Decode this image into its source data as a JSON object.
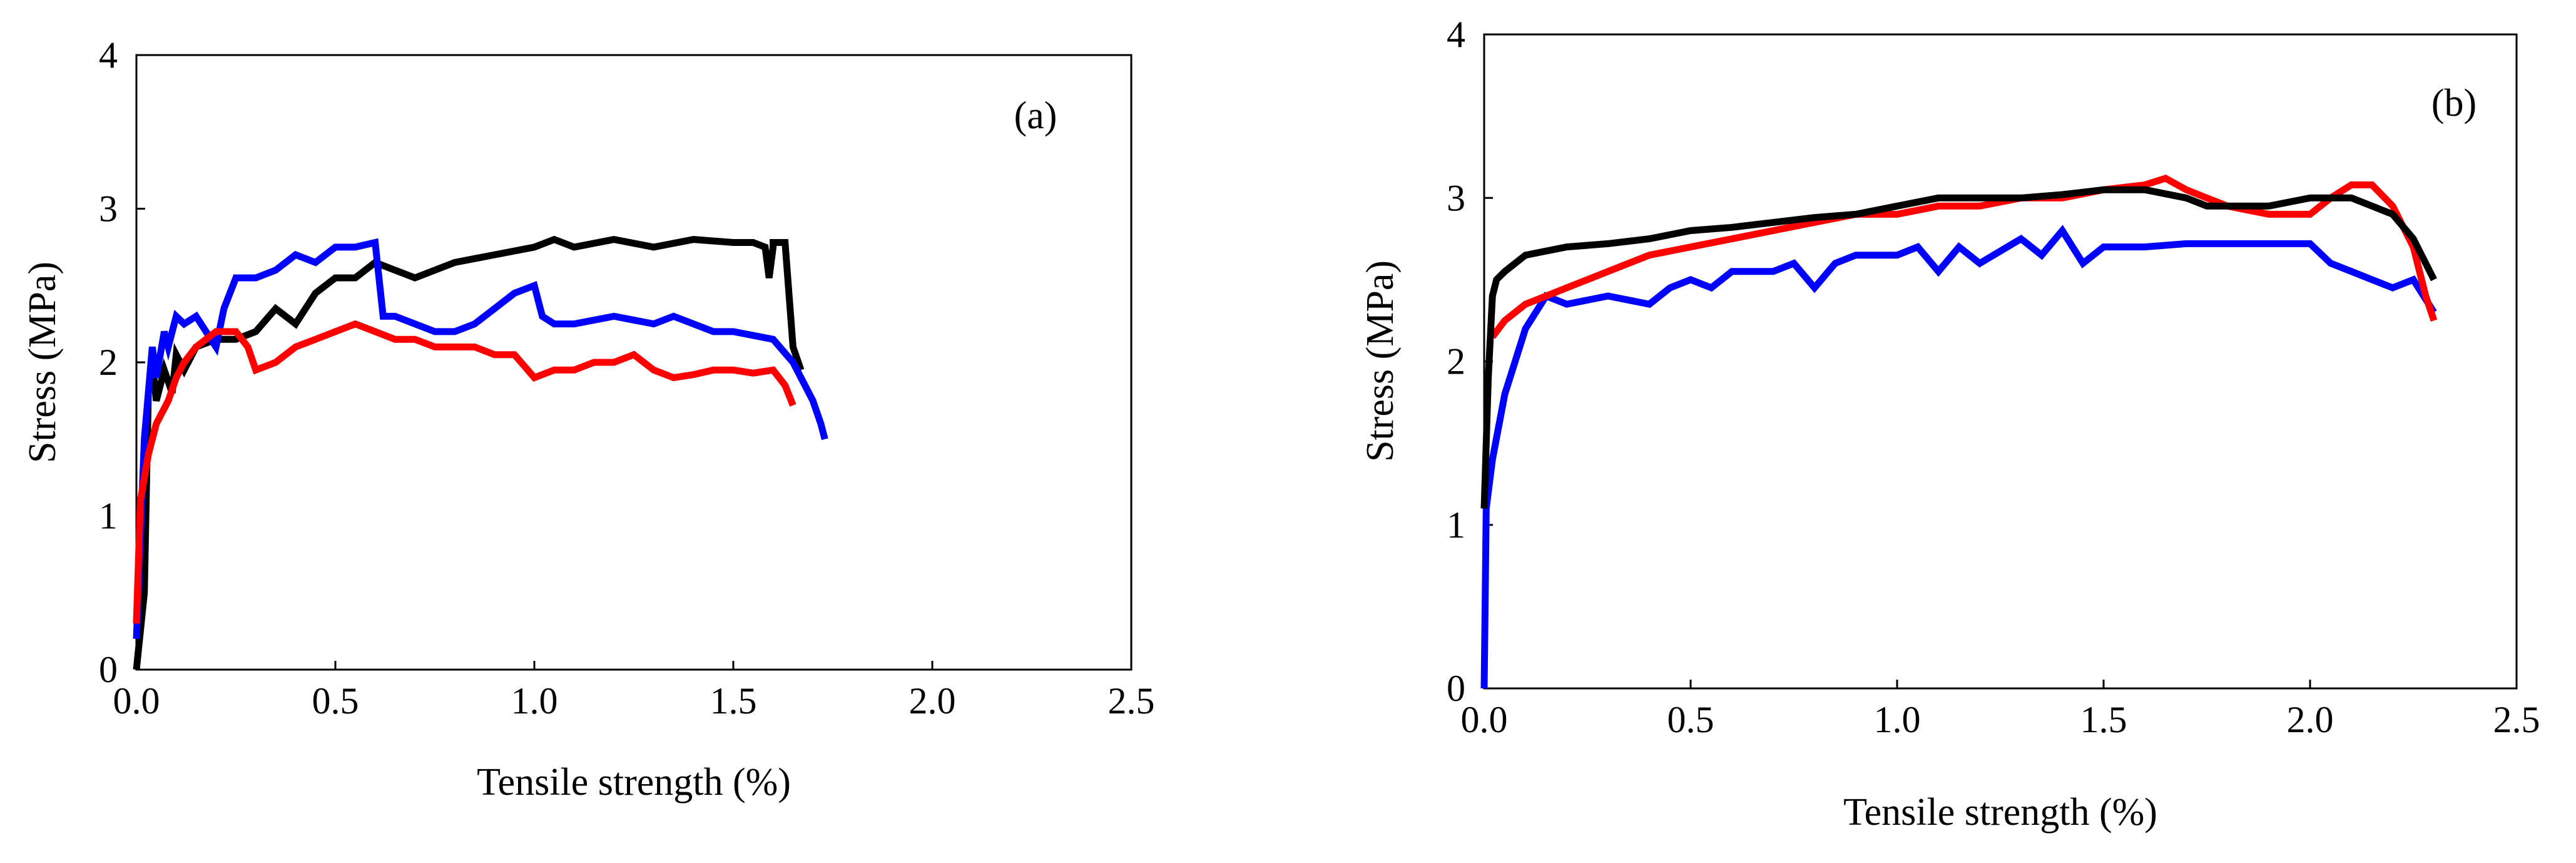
{
  "chart_data": [
    {
      "panel_label": "(a)",
      "type": "line",
      "xlabel": "Tensile strength (%)",
      "ylabel": "Stress (MPa)",
      "xlim": [
        0,
        2.5
      ],
      "ylim": [
        0,
        4
      ],
      "xticks": [
        "0.0",
        "0.5",
        "1.0",
        "1.5",
        "2.0",
        "2.5"
      ],
      "yticks": [
        "0",
        "1",
        "2",
        "3",
        "4"
      ],
      "series": [
        {
          "name": "black",
          "color": "#000000",
          "x": [
            0,
            0.02,
            0.03,
            0.04,
            0.05,
            0.07,
            0.09,
            0.1,
            0.12,
            0.15,
            0.2,
            0.25,
            0.3,
            0.35,
            0.4,
            0.45,
            0.5,
            0.55,
            0.6,
            0.65,
            0.7,
            0.8,
            0.9,
            1.0,
            1.05,
            1.1,
            1.2,
            1.3,
            1.4,
            1.5,
            1.55,
            1.58,
            1.59,
            1.6,
            1.6,
            1.63,
            1.65,
            1.67
          ],
          "y": [
            0,
            0.5,
            1.8,
            2.0,
            1.75,
            1.95,
            1.8,
            2.05,
            1.95,
            2.1,
            2.15,
            2.15,
            2.2,
            2.35,
            2.25,
            2.45,
            2.55,
            2.55,
            2.65,
            2.6,
            2.55,
            2.65,
            2.7,
            2.75,
            2.8,
            2.75,
            2.8,
            2.75,
            2.8,
            2.78,
            2.78,
            2.75,
            2.55,
            2.75,
            2.78,
            2.78,
            2.1,
            1.95
          ]
        },
        {
          "name": "blue",
          "color": "#0000ff",
          "x": [
            0,
            0.02,
            0.04,
            0.05,
            0.07,
            0.08,
            0.1,
            0.12,
            0.15,
            0.2,
            0.22,
            0.25,
            0.3,
            0.35,
            0.4,
            0.45,
            0.5,
            0.55,
            0.6,
            0.62,
            0.65,
            0.7,
            0.75,
            0.8,
            0.85,
            0.9,
            0.95,
            1.0,
            1.02,
            1.05,
            1.1,
            1.2,
            1.3,
            1.35,
            1.4,
            1.45,
            1.5,
            1.6,
            1.65,
            1.68,
            1.7,
            1.72,
            1.73
          ],
          "y": [
            0.2,
            1.5,
            2.1,
            1.9,
            2.2,
            2.1,
            2.3,
            2.25,
            2.3,
            2.1,
            2.35,
            2.55,
            2.55,
            2.6,
            2.7,
            2.65,
            2.75,
            2.75,
            2.78,
            2.3,
            2.3,
            2.25,
            2.2,
            2.2,
            2.25,
            2.35,
            2.45,
            2.5,
            2.3,
            2.25,
            2.25,
            2.3,
            2.25,
            2.3,
            2.25,
            2.2,
            2.2,
            2.15,
            2.0,
            1.85,
            1.75,
            1.6,
            1.5
          ]
        },
        {
          "name": "red",
          "color": "#ff0000",
          "x": [
            0,
            0.01,
            0.03,
            0.05,
            0.08,
            0.1,
            0.12,
            0.15,
            0.2,
            0.25,
            0.28,
            0.3,
            0.35,
            0.4,
            0.45,
            0.5,
            0.55,
            0.6,
            0.65,
            0.7,
            0.75,
            0.8,
            0.85,
            0.9,
            0.95,
            1.0,
            1.05,
            1.1,
            1.15,
            1.2,
            1.25,
            1.3,
            1.35,
            1.4,
            1.45,
            1.5,
            1.55,
            1.6,
            1.63,
            1.65
          ],
          "y": [
            0.3,
            1.1,
            1.4,
            1.6,
            1.75,
            1.9,
            2.0,
            2.1,
            2.2,
            2.2,
            2.1,
            1.95,
            2.0,
            2.1,
            2.15,
            2.2,
            2.25,
            2.2,
            2.15,
            2.15,
            2.1,
            2.1,
            2.1,
            2.05,
            2.05,
            1.9,
            1.95,
            1.95,
            2.0,
            2.0,
            2.05,
            1.95,
            1.9,
            1.92,
            1.95,
            1.95,
            1.93,
            1.95,
            1.85,
            1.72
          ]
        }
      ]
    },
    {
      "panel_label": "(b)",
      "type": "line",
      "xlabel": "Tensile strength (%)",
      "ylabel": "Stress (MPa)",
      "xlim": [
        0,
        2.5
      ],
      "ylim": [
        0,
        4
      ],
      "xticks": [
        "0.0",
        "0.5",
        "1.0",
        "1.5",
        "2.0",
        "2.5"
      ],
      "yticks": [
        "0",
        "1",
        "2",
        "3",
        "4"
      ],
      "series": [
        {
          "name": "blue",
          "color": "#0000ff",
          "x": [
            0,
            0.005,
            0.02,
            0.05,
            0.1,
            0.15,
            0.2,
            0.3,
            0.4,
            0.45,
            0.5,
            0.55,
            0.6,
            0.7,
            0.75,
            0.8,
            0.85,
            0.9,
            1.0,
            1.05,
            1.1,
            1.15,
            1.2,
            1.3,
            1.35,
            1.4,
            1.45,
            1.5,
            1.6,
            1.7,
            1.8,
            1.9,
            2.0,
            2.05,
            2.1,
            2.15,
            2.2,
            2.25,
            2.3
          ],
          "y": [
            0,
            1.1,
            1.4,
            1.8,
            2.2,
            2.4,
            2.35,
            2.4,
            2.35,
            2.45,
            2.5,
            2.45,
            2.55,
            2.55,
            2.6,
            2.45,
            2.6,
            2.65,
            2.65,
            2.7,
            2.55,
            2.7,
            2.6,
            2.75,
            2.65,
            2.8,
            2.6,
            2.7,
            2.7,
            2.72,
            2.72,
            2.72,
            2.72,
            2.6,
            2.55,
            2.5,
            2.45,
            2.5,
            2.3
          ]
        },
        {
          "name": "red",
          "color": "#ff0000",
          "x": [
            0.02,
            0.05,
            0.1,
            0.15,
            0.2,
            0.3,
            0.4,
            0.5,
            0.6,
            0.7,
            0.8,
            0.9,
            1.0,
            1.1,
            1.2,
            1.3,
            1.4,
            1.5,
            1.6,
            1.65,
            1.7,
            1.75,
            1.8,
            1.9,
            2.0,
            2.05,
            2.1,
            2.15,
            2.2,
            2.25,
            2.28,
            2.3
          ],
          "y": [
            2.15,
            2.25,
            2.35,
            2.4,
            2.45,
            2.55,
            2.65,
            2.7,
            2.75,
            2.8,
            2.85,
            2.9,
            2.9,
            2.95,
            2.95,
            3.0,
            3.0,
            3.05,
            3.08,
            3.12,
            3.05,
            3.0,
            2.95,
            2.9,
            2.9,
            3.0,
            3.08,
            3.08,
            2.95,
            2.7,
            2.4,
            2.25
          ]
        },
        {
          "name": "black",
          "color": "#000000",
          "x": [
            0,
            0.01,
            0.02,
            0.03,
            0.05,
            0.1,
            0.2,
            0.3,
            0.4,
            0.5,
            0.6,
            0.7,
            0.8,
            0.9,
            1.0,
            1.1,
            1.2,
            1.3,
            1.4,
            1.5,
            1.6,
            1.7,
            1.75,
            1.8,
            1.9,
            2.0,
            2.1,
            2.15,
            2.2,
            2.25,
            2.3
          ],
          "y": [
            1.1,
            1.9,
            2.4,
            2.5,
            2.55,
            2.65,
            2.7,
            2.72,
            2.75,
            2.8,
            2.82,
            2.85,
            2.88,
            2.9,
            2.95,
            3.0,
            3.0,
            3.0,
            3.02,
            3.05,
            3.05,
            3.0,
            2.95,
            2.95,
            2.95,
            3.0,
            3.0,
            2.95,
            2.9,
            2.75,
            2.5
          ]
        }
      ]
    }
  ]
}
